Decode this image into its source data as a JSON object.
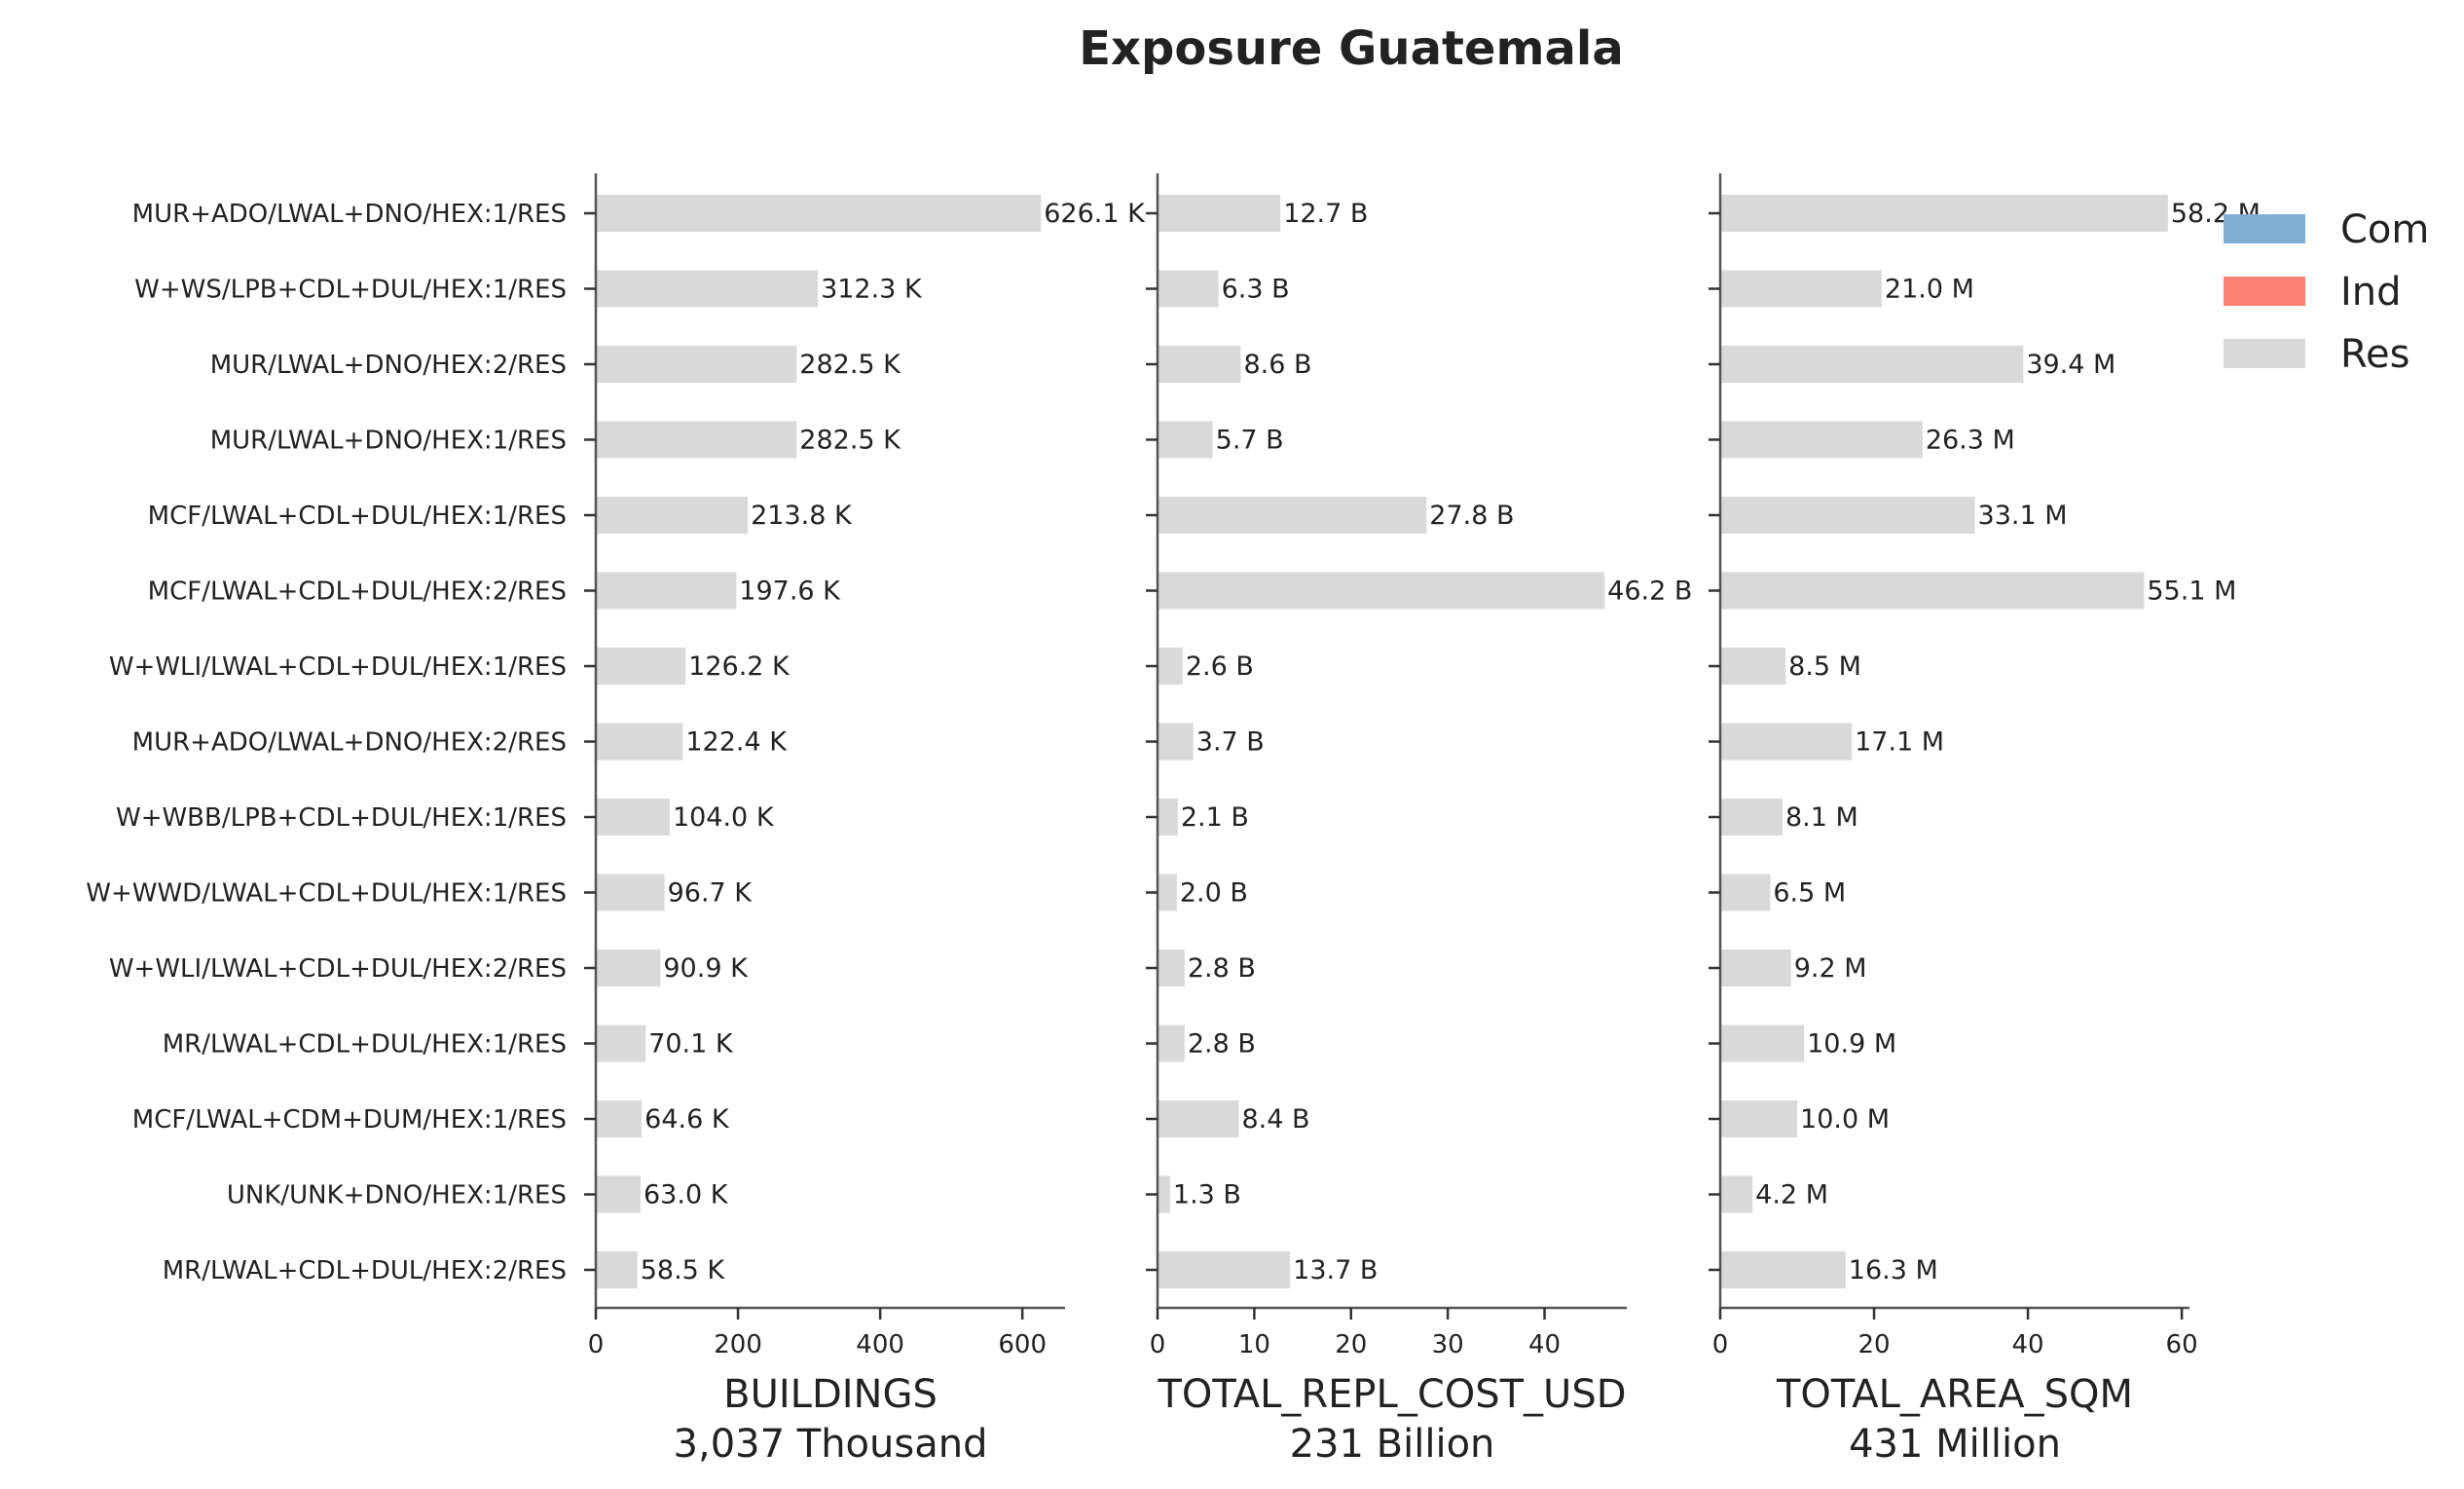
{
  "chart_data": {
    "type": "bar",
    "orientation": "horizontal",
    "title": "Exposure Guatemala",
    "categories": [
      "MUR+ADO/LWAL+DNO/HEX:1/RES",
      "W+WS/LPB+CDL+DUL/HEX:1/RES",
      "MUR/LWAL+DNO/HEX:2/RES",
      "MUR/LWAL+DNO/HEX:1/RES",
      "MCF/LWAL+CDL+DUL/HEX:1/RES",
      "MCF/LWAL+CDL+DUL/HEX:2/RES",
      "W+WLI/LWAL+CDL+DUL/HEX:1/RES",
      "MUR+ADO/LWAL+DNO/HEX:2/RES",
      "W+WBB/LPB+CDL+DUL/HEX:1/RES",
      "W+WWD/LWAL+CDL+DUL/HEX:1/RES",
      "W+WLI/LWAL+CDL+DUL/HEX:2/RES",
      "MR/LWAL+CDL+DUL/HEX:1/RES",
      "MCF/LWAL+CDM+DUM/HEX:1/RES",
      "UNK/UNK+DNO/HEX:1/RES",
      "MR/LWAL+CDL+DUL/HEX:2/RES"
    ],
    "legend": {
      "placement": "top-right",
      "entries": [
        {
          "name": "Com",
          "color": "#7fb0d3"
        },
        {
          "name": "Ind",
          "color": "#fa8072"
        },
        {
          "name": "Res",
          "color": "#d9d9d9"
        }
      ]
    },
    "panels": [
      {
        "xlabel": "BUILDINGS",
        "total_label": "3,037 Thousand",
        "xlim": [
          0,
          660
        ],
        "xticks": [
          0,
          200,
          400,
          600
        ],
        "series": [
          {
            "name": "Res",
            "color": "#d9d9d9",
            "values": [
              626.1,
              312.3,
              282.5,
              282.5,
              213.8,
              197.6,
              126.2,
              122.4,
              104.0,
              96.7,
              90.9,
              70.1,
              64.6,
              63.0,
              58.5
            ]
          }
        ],
        "value_labels": [
          "626.1 K",
          "312.3 K",
          "282.5 K",
          "282.5 K",
          "213.8 K",
          "197.6 K",
          "126.2 K",
          "122.4 K",
          "104.0 K",
          "96.7 K",
          "90.9 K",
          "70.1 K",
          "64.6 K",
          "63.0 K",
          "58.5 K"
        ]
      },
      {
        "xlabel": "TOTAL_REPL_COST_USD",
        "total_label": "231 Billion",
        "xlim": [
          0,
          48.5
        ],
        "xticks": [
          0,
          10,
          20,
          30,
          40
        ],
        "series": [
          {
            "name": "Res",
            "color": "#d9d9d9",
            "values": [
              12.7,
              6.3,
              8.6,
              5.7,
              27.8,
              46.2,
              2.6,
              3.7,
              2.1,
              2.0,
              2.8,
              2.8,
              8.4,
              1.3,
              13.7
            ]
          }
        ],
        "value_labels": [
          "12.7 B",
          "6.3 B",
          "8.6 B",
          "5.7 B",
          "27.8 B",
          "46.2 B",
          "2.6 B",
          "3.7 B",
          "2.1 B",
          "2.0 B",
          "2.8 B",
          "2.8 B",
          "8.4 B",
          "1.3 B",
          "13.7 B"
        ]
      },
      {
        "xlabel": "TOTAL_AREA_SQM",
        "total_label": "431 Million",
        "xlim": [
          0,
          61
        ],
        "xticks": [
          0,
          20,
          40,
          60
        ],
        "series": [
          {
            "name": "Res",
            "color": "#d9d9d9",
            "values": [
              58.2,
              21.0,
              39.4,
              26.3,
              33.1,
              55.1,
              8.5,
              17.1,
              8.1,
              6.5,
              9.2,
              10.9,
              10.0,
              4.2,
              16.3
            ]
          }
        ],
        "value_labels": [
          "58.2 M",
          "21.0 M",
          "39.4 M",
          "26.3 M",
          "33.1 M",
          "55.1 M",
          "8.5 M",
          "17.1 M",
          "8.1 M",
          "6.5 M",
          "9.2 M",
          "10.9 M",
          "10.0 M",
          "4.2 M",
          "16.3 M"
        ]
      }
    ],
    "grid": false
  }
}
